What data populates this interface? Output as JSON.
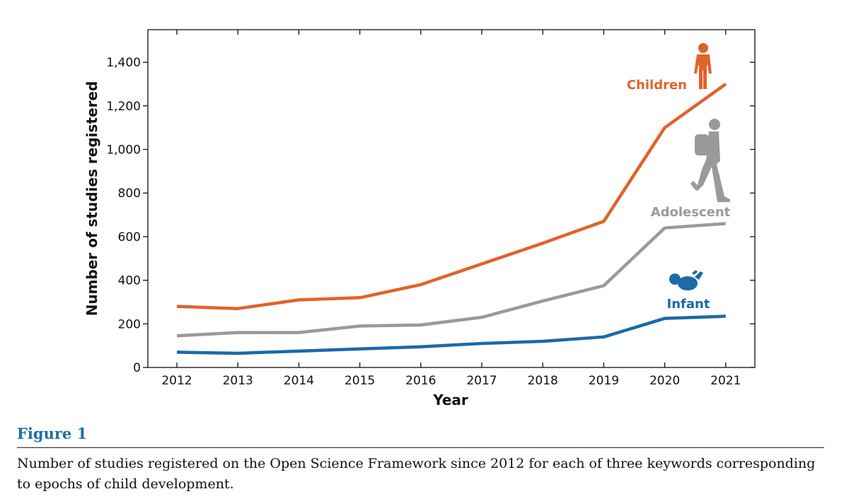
{
  "chart_data": {
    "type": "line",
    "xlabel": "Year",
    "ylabel": "Number of studies registered",
    "x": [
      2012,
      2013,
      2014,
      2015,
      2016,
      2017,
      2018,
      2019,
      2020,
      2021
    ],
    "xticks": [
      "2012",
      "2013",
      "2014",
      "2015",
      "2016",
      "2017",
      "2018",
      "2019",
      "2020",
      "2021"
    ],
    "ylim": [
      0,
      1500
    ],
    "yticks": [
      0,
      200,
      400,
      600,
      800,
      1000,
      1200,
      1400
    ],
    "ytick_labels": [
      "0",
      "200",
      "400",
      "600",
      "800",
      "1,000",
      "1,200",
      "1,400"
    ],
    "grid": false,
    "series": [
      {
        "name": "Children",
        "color": "#e0632a",
        "icon": "child-icon",
        "values": [
          280,
          270,
          310,
          320,
          380,
          475,
          570,
          670,
          1100,
          1300
        ]
      },
      {
        "name": "Adolescent",
        "color": "#9a9a9a",
        "icon": "walking-teen-icon",
        "values": [
          145,
          160,
          160,
          190,
          195,
          230,
          305,
          375,
          640,
          660
        ]
      },
      {
        "name": "Infant",
        "color": "#1a6aa6",
        "icon": "baby-icon",
        "values": [
          70,
          65,
          75,
          85,
          95,
          110,
          120,
          140,
          225,
          235
        ]
      }
    ]
  },
  "figure": {
    "title": "Figure 1",
    "caption": "Number of studies registered on the Open Science Framework since 2012 for each of three keywords corresponding to epochs of child development.",
    "title_color": "#1c6fa6"
  }
}
